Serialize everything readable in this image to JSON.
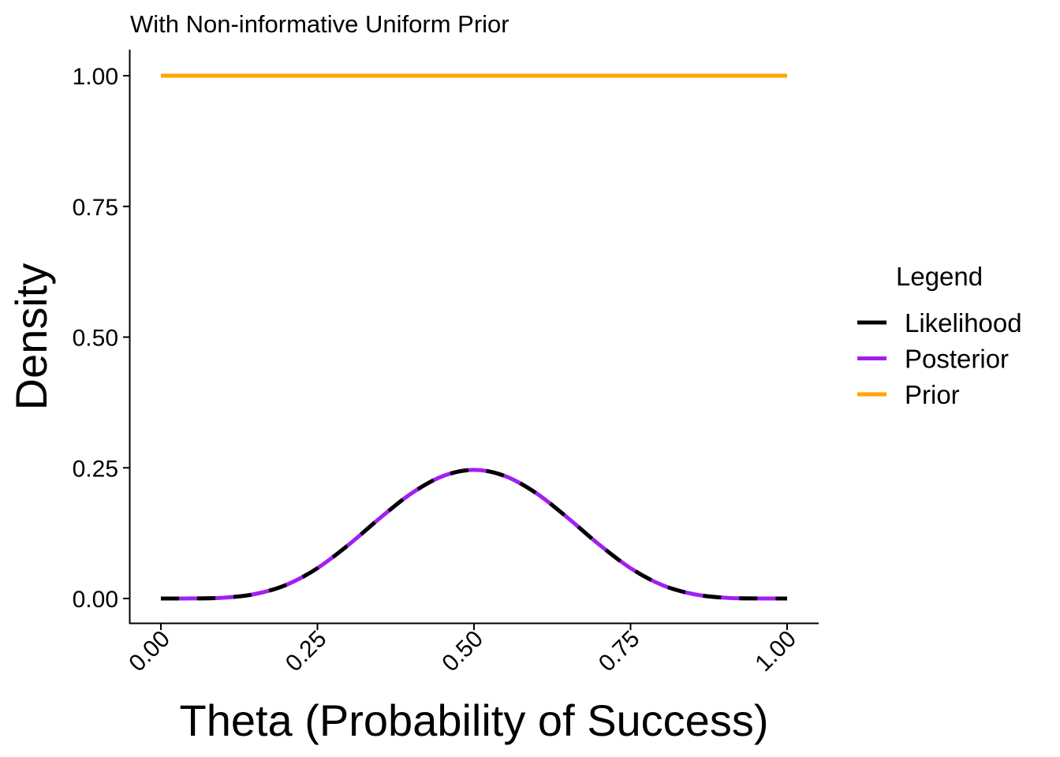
{
  "chart_data": {
    "type": "line",
    "title": "With Non-informative Uniform Prior",
    "xlabel": "Theta (Probability of Success)",
    "ylabel": "Density",
    "xlim": [
      0,
      1
    ],
    "ylim": [
      0,
      1
    ],
    "x_ticks": [
      "0.00",
      "0.25",
      "0.50",
      "0.75",
      "1.00"
    ],
    "y_ticks": [
      "0.00",
      "0.25",
      "0.50",
      "0.75",
      "1.00"
    ],
    "grid": false,
    "legend": {
      "title": "Legend",
      "position": "right",
      "entries": [
        "Likelihood",
        "Posterior",
        "Prior"
      ]
    },
    "x": [
      0.0,
      0.05,
      0.1,
      0.15,
      0.2,
      0.25,
      0.3,
      0.35,
      0.4,
      0.45,
      0.5,
      0.55,
      0.6,
      0.65,
      0.7,
      0.75,
      0.8,
      0.85,
      0.9,
      0.95,
      1.0
    ],
    "series": [
      {
        "name": "Likelihood",
        "color": "#000000",
        "style": "dashed",
        "values": [
          0.0,
          0.0001,
          0.0015,
          0.0085,
          0.026,
          0.058,
          0.103,
          0.154,
          0.201,
          0.234,
          0.246,
          0.234,
          0.201,
          0.154,
          0.103,
          0.058,
          0.026,
          0.0085,
          0.0015,
          0.0001,
          0.0
        ]
      },
      {
        "name": "Posterior",
        "color": "#A020F0",
        "style": "solid",
        "values": [
          0.0,
          0.0001,
          0.0015,
          0.0085,
          0.026,
          0.058,
          0.103,
          0.154,
          0.201,
          0.234,
          0.246,
          0.234,
          0.201,
          0.154,
          0.103,
          0.058,
          0.026,
          0.0085,
          0.0015,
          0.0001,
          0.0
        ]
      },
      {
        "name": "Prior",
        "color": "#FFA500",
        "style": "solid",
        "values": [
          1,
          1,
          1,
          1,
          1,
          1,
          1,
          1,
          1,
          1,
          1,
          1,
          1,
          1,
          1,
          1,
          1,
          1,
          1,
          1,
          1
        ]
      }
    ]
  }
}
